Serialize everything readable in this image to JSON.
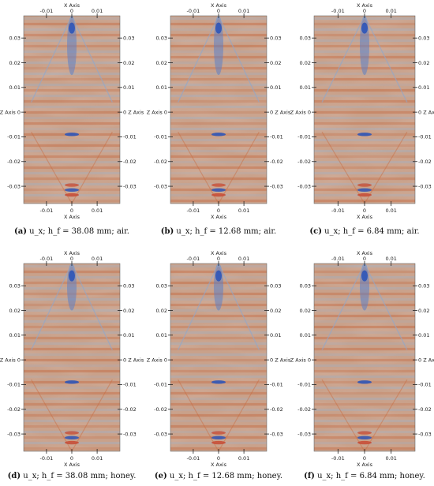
{
  "chart_data": [
    {
      "type": "heatmap",
      "label": "(a)",
      "caption": "u_x; h_f = 38.08 mm; air.",
      "fluid": "air",
      "hf_mm": 38.08,
      "xlabel": "X Axis",
      "ylabel": "Z Axis",
      "xticks": [
        "-0.01",
        "0",
        "0.01"
      ],
      "zticks": [
        "0.03",
        "0.02",
        "0.01",
        "0",
        "-0.01",
        "-0.02",
        "-0.03"
      ],
      "xlim": [
        -0.019,
        0.019
      ],
      "zlim": [
        -0.037,
        0.039
      ],
      "colors": {
        "positive": "#c25a2a",
        "negative": "#2d55b8",
        "zero": "#c9a18a"
      }
    },
    {
      "type": "heatmap",
      "label": "(b)",
      "caption": "u_x; h_f = 12.68 mm; air.",
      "fluid": "air",
      "hf_mm": 12.68,
      "xlabel": "X Axis",
      "ylabel": "Z Axis",
      "xticks": [
        "-0.01",
        "0",
        "0.01"
      ],
      "zticks": [
        "0.03",
        "0.02",
        "0.01",
        "0",
        "-0.01",
        "-0.02",
        "-0.03"
      ],
      "xlim": [
        -0.019,
        0.019
      ],
      "zlim": [
        -0.037,
        0.039
      ],
      "colors": {
        "positive": "#c25a2a",
        "negative": "#2d55b8",
        "zero": "#c9a18a"
      }
    },
    {
      "type": "heatmap",
      "label": "(c)",
      "caption": "u_x; h_f = 6.84 mm; air.",
      "fluid": "air",
      "hf_mm": 6.84,
      "xlabel": "X Axis",
      "ylabel": "Z Axis",
      "xticks": [
        "-0.01",
        "0",
        "0.01"
      ],
      "zticks": [
        "0.03",
        "0.02",
        "0.01",
        "0",
        "-0.01",
        "-0.02",
        "-0.03"
      ],
      "xlim": [
        -0.019,
        0.019
      ],
      "zlim": [
        -0.037,
        0.039
      ],
      "colors": {
        "positive": "#c25a2a",
        "negative": "#2d55b8",
        "zero": "#c9a18a"
      }
    },
    {
      "type": "heatmap",
      "label": "(d)",
      "caption": "u_x; h_f = 38.08 mm; honey.",
      "fluid": "honey",
      "hf_mm": 38.08,
      "xlabel": "X Axis",
      "ylabel": "Z Axis",
      "xticks": [
        "-0.01",
        "0",
        "0.01"
      ],
      "zticks": [
        "0.03",
        "0.02",
        "0.01",
        "0",
        "-0.01",
        "-0.02",
        "-0.03"
      ],
      "xlim": [
        -0.019,
        0.019
      ],
      "zlim": [
        -0.037,
        0.039
      ],
      "colors": {
        "positive": "#c25a2a",
        "negative": "#2d55b8",
        "zero": "#c9a18a"
      }
    },
    {
      "type": "heatmap",
      "label": "(e)",
      "caption": "u_x; h_f = 12.68 mm; honey.",
      "fluid": "honey",
      "hf_mm": 12.68,
      "xlabel": "X Axis",
      "ylabel": "Z Axis",
      "xticks": [
        "-0.01",
        "0",
        "0.01"
      ],
      "zticks": [
        "0.03",
        "0.02",
        "0.01",
        "0",
        "-0.01",
        "-0.02",
        "-0.03"
      ],
      "xlim": [
        -0.019,
        0.019
      ],
      "zlim": [
        -0.037,
        0.039
      ],
      "colors": {
        "positive": "#c25a2a",
        "negative": "#2d55b8",
        "zero": "#c9a18a"
      }
    },
    {
      "type": "heatmap",
      "label": "(f)",
      "caption": "u_x; h_f = 6.84 mm; honey.",
      "fluid": "honey",
      "hf_mm": 6.84,
      "xlabel": "X Axis",
      "ylabel": "Z Axis",
      "xticks": [
        "-0.01",
        "0",
        "0.01"
      ],
      "zticks": [
        "0.03",
        "0.02",
        "0.01",
        "0",
        "-0.01",
        "-0.02",
        "-0.03"
      ],
      "xlim": [
        -0.019,
        0.019
      ],
      "zlim": [
        -0.037,
        0.039
      ],
      "colors": {
        "positive": "#c25a2a",
        "negative": "#2d55b8",
        "zero": "#c9a18a"
      }
    }
  ]
}
